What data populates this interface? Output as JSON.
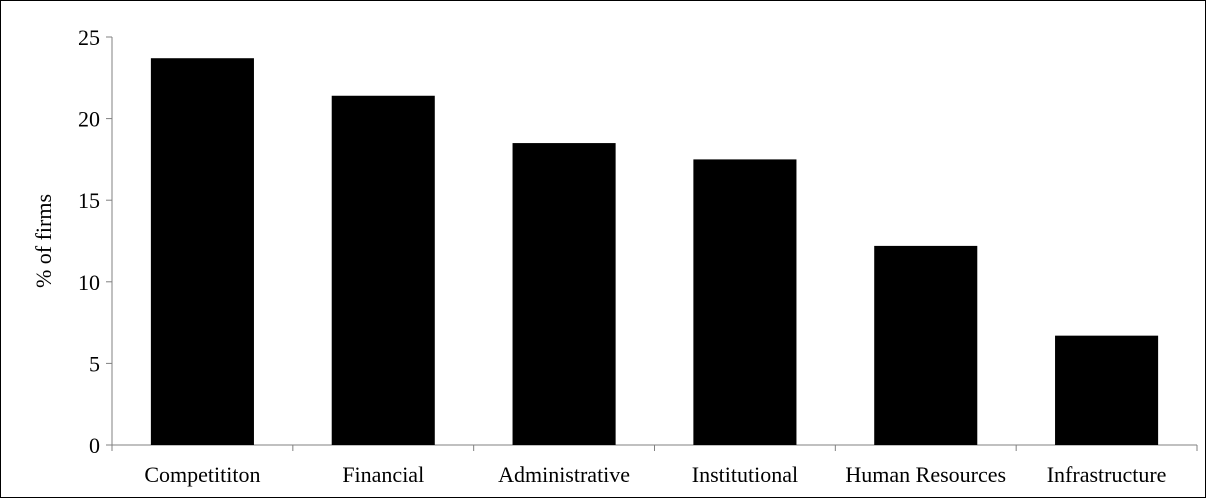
{
  "chart_data": {
    "type": "bar",
    "title": "",
    "xlabel": "",
    "ylabel": "% of firms",
    "categories": [
      "Competititon",
      "Financial",
      "Administrative",
      "Institutional",
      "Human Resources",
      "Infrastructure"
    ],
    "values": [
      23.7,
      21.4,
      18.5,
      17.5,
      12.2,
      6.7
    ],
    "ylim": [
      0,
      25
    ],
    "yticks": [
      0,
      5,
      10,
      15,
      20,
      25
    ],
    "grid": false,
    "legend": "none",
    "bar_color": "#000000",
    "axis_color": "#808080"
  }
}
